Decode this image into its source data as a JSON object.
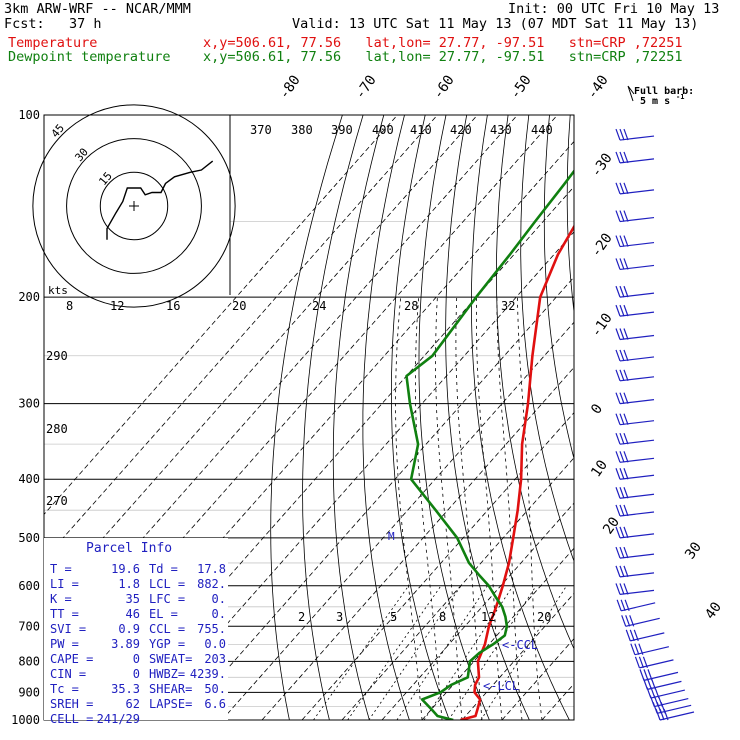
{
  "header": {
    "title": "3km ARW-WRF -- NCAR/MMM",
    "init": "Init: 00 UTC Fri 10 May 13",
    "fcst": "Fcst:   37 h",
    "valid": "Valid: 13 UTC Sat 11 May 13 (07 MDT Sat 11 May 13)",
    "temperature_label": "Temperature",
    "dewpoint_label": "Dewpoint temperature",
    "point_info": "x,y=506.61, 77.56   lat,lon= 27.77, -97.51   stn=CRP ,72251",
    "colors": {
      "temperature": "#e01010",
      "dewpoint": "#108010",
      "parcel": "#2020c0"
    }
  },
  "barb_legend": {
    "line1": "Full barb:",
    "line2": "5 m s",
    "exponent": "-1"
  },
  "hodograph": {
    "units": "kts",
    "ring_labels": [
      "15",
      "30",
      "45"
    ]
  },
  "parcel_info": {
    "title": "Parcel Info",
    "rows": [
      [
        "T    =",
        "19.6",
        "Td =",
        "17.8"
      ],
      [
        "LI   =",
        "1.8",
        "LCL =",
        "882."
      ],
      [
        "K    =",
        "35",
        "LFC =",
        "0."
      ],
      [
        "TT   =",
        "46",
        "EL  =",
        "0."
      ],
      [
        "SVI  =",
        "0.9",
        "CCL =",
        "755."
      ],
      [
        "PW   =",
        "3.89",
        "YGP =",
        "0.0"
      ],
      [
        "CAPE =",
        "0",
        "SWEAT=",
        "203"
      ],
      [
        "CIN  =",
        "0",
        "HWBZ=",
        "4239."
      ],
      [
        "Tc   =",
        "35.3",
        "SHEAR=",
        "50."
      ],
      [
        "SREH =",
        "62",
        "LAPSE=",
        "6.6"
      ],
      [
        "CELL =",
        "241/29",
        "",
        ""
      ]
    ]
  },
  "levels_labels": {
    "ccl": "<-CCL",
    "lcl": "<-LCL",
    "parcel_marker": "M"
  },
  "chart_data": {
    "type": "line",
    "title": "",
    "xlabel": "",
    "ylabel": "",
    "ylim": [
      1000,
      100
    ],
    "y_scale": "log pressure (skew-T)",
    "pressure_ticks": [
      100,
      200,
      300,
      400,
      500,
      600,
      700,
      800,
      900,
      1000
    ],
    "isotherm_labels": [
      "-80",
      "-70",
      "-60",
      "-50",
      "-40",
      "-30",
      "-20",
      "-10",
      "0",
      "10",
      "20",
      "30",
      "40"
    ],
    "theta_labels": [
      "370",
      "380",
      "390",
      "400",
      "410",
      "420",
      "430",
      "440",
      "290",
      "280",
      "270"
    ],
    "mixing_ratio_labels_top": [
      "8",
      "12",
      "16",
      "20",
      "24",
      "28",
      "32"
    ],
    "mixing_ratio_labels_low": [
      "2",
      "3",
      "5",
      "8",
      "12",
      "20"
    ],
    "series": [
      {
        "name": "Temperature",
        "p": [
          1000,
          985,
          960,
          925,
          900,
          875,
          850,
          800,
          750,
          700,
          650,
          600,
          550,
          500,
          450,
          400,
          350,
          300,
          250,
          200,
          170,
          150,
          130,
          115,
          105,
          100
        ],
        "t_degC": [
          19.6,
          22.5,
          21.5,
          20.0,
          17.0,
          15.5,
          14.8,
          11.0,
          9.0,
          6.0,
          3.5,
          0.5,
          -3.0,
          -7.5,
          -12.5,
          -18.5,
          -26.0,
          -33.5,
          -43.0,
          -54.0,
          -59.0,
          -61.5,
          -63.0,
          -63.5,
          -64.5,
          -66.0
        ]
      },
      {
        "name": "Dewpoint temperature",
        "p": [
          1000,
          985,
          960,
          925,
          900,
          875,
          850,
          800,
          775,
          750,
          725,
          700,
          675,
          650,
          625,
          600,
          575,
          550,
          500,
          450,
          400,
          350,
          300,
          270,
          250,
          200,
          170,
          150,
          130,
          115,
          100
        ],
        "t_degC": [
          17.8,
          13.0,
          10.0,
          5.5,
          8.5,
          9.5,
          12.0,
          9.0,
          9.5,
          11.0,
          12.0,
          10.5,
          8.0,
          5.0,
          1.0,
          -3.0,
          -8.0,
          -13.0,
          -21.5,
          -33.0,
          -46.0,
          -52.0,
          -63.0,
          -70.0,
          -68.0,
          -70.0,
          -71.0,
          -72.0,
          -73.0,
          -74.0,
          -75.0
        ]
      }
    ],
    "hodograph_uv_kts": [
      [
        -12,
        -15
      ],
      [
        -12,
        -10
      ],
      [
        -8,
        -3
      ],
      [
        -5,
        2
      ],
      [
        -3,
        8
      ],
      [
        3,
        8
      ],
      [
        5,
        5
      ],
      [
        8,
        6
      ],
      [
        12,
        6
      ],
      [
        14,
        10
      ],
      [
        18,
        13
      ],
      [
        25,
        15
      ],
      [
        30,
        16
      ],
      [
        35,
        20
      ]
    ],
    "wind_barbs": {
      "levels_hPa": [
        110,
        120,
        135,
        150,
        165,
        180,
        200,
        215,
        235,
        255,
        275,
        300,
        325,
        350,
        375,
        400,
        430,
        460,
        500,
        540,
        580,
        620,
        660,
        700,
        740,
        780,
        820,
        860,
        890,
        920,
        950,
        975,
        1000
      ],
      "full_barbs": [
        3,
        3,
        3,
        3,
        3,
        3,
        3,
        3,
        3,
        3,
        3,
        3,
        3,
        3,
        3,
        3,
        3,
        3,
        3,
        3,
        3,
        3,
        3,
        3,
        3,
        3,
        3,
        3,
        3,
        3,
        3,
        3,
        3
      ]
    }
  }
}
